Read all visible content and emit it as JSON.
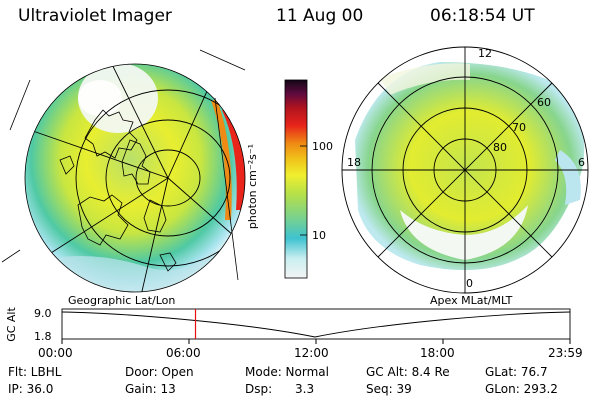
{
  "header": {
    "instrument": "Ultraviolet Imager",
    "date": "11 Aug 00",
    "time": "06:18:54 UT"
  },
  "left_panel": {
    "caption": "Geographic Lat/Lon"
  },
  "right_panel": {
    "caption": "Apex MLat/MLT",
    "mlt_labels": [
      "12",
      "18",
      "6",
      "0"
    ],
    "lat_labels": [
      "60",
      "70",
      "80"
    ]
  },
  "colorbar": {
    "label": "photon cm⁻²s⁻¹",
    "ticks": [
      "100",
      "10"
    ],
    "scale": "log",
    "colors": [
      "#f4f4f4",
      "#c8eef0",
      "#3ec2d0",
      "#77d18f",
      "#b4e04a",
      "#f0ef2e",
      "#f0c31a",
      "#ef8a14",
      "#e8241b",
      "#b0131e",
      "#5f0a3f",
      "#120616"
    ]
  },
  "timeline": {
    "y_label": "GC Alt",
    "y_ticks": [
      "9.0",
      "1.8"
    ],
    "x_ticks": [
      "00:00",
      "06:00",
      "12:00",
      "18:00",
      "23:59"
    ],
    "current_time_fraction": 0.2628
  },
  "status": {
    "row1": [
      "Flt: LBHL",
      "Door: Open",
      "Mode: Normal",
      "GC Alt: 8.4 Re",
      "GLat:  76.7"
    ],
    "row2": [
      "IP: 36.0",
      "Gain: 13",
      "Dsp:      3.3",
      "Seq: 39",
      "GLon: 293.2"
    ]
  }
}
